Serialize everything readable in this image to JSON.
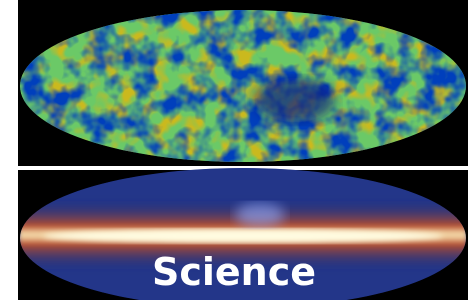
{
  "caption": "Science"
}
